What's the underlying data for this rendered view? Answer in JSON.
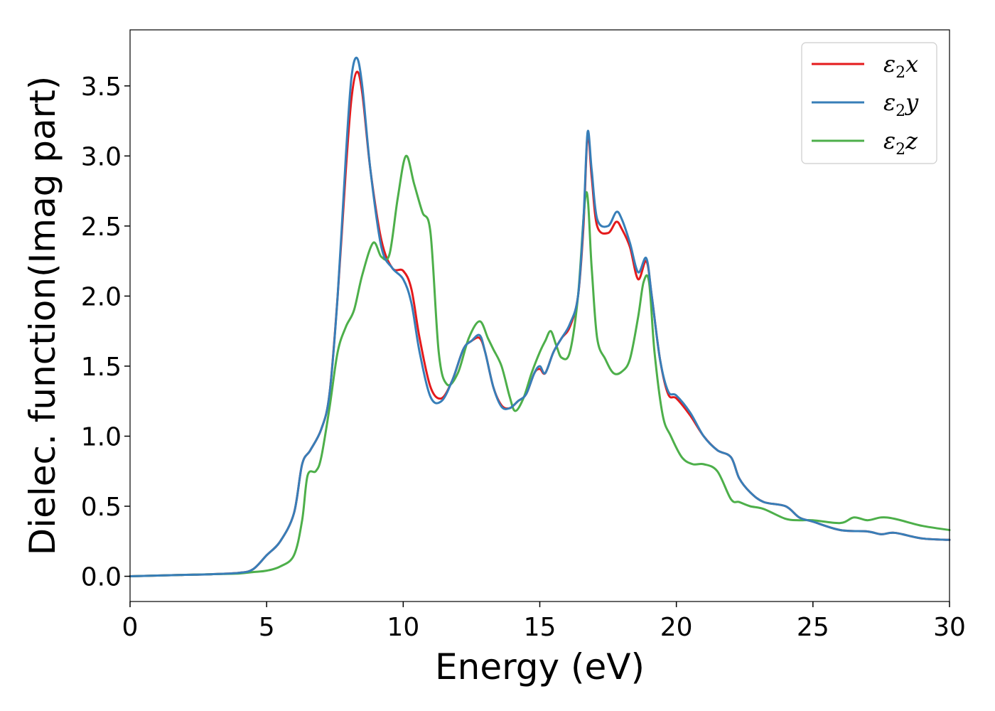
{
  "chart_data": {
    "type": "line",
    "xlabel": "Energy (eV)",
    "ylabel": "Dielec. function(Imag part)",
    "xlim": [
      0,
      30
    ],
    "ylim": [
      -0.18,
      3.9
    ],
    "xticks": [
      0,
      5,
      10,
      15,
      20,
      25,
      30
    ],
    "yticks": [
      0.0,
      0.5,
      1.0,
      1.5,
      2.0,
      2.5,
      3.0,
      3.5
    ],
    "xtick_labels": [
      "0",
      "5",
      "10",
      "15",
      "20",
      "25",
      "30"
    ],
    "ytick_labels": [
      "0.0",
      "0.5",
      "1.0",
      "1.5",
      "2.0",
      "2.5",
      "3.0",
      "3.5"
    ],
    "grid": false,
    "legend_position": "top-right",
    "series": [
      {
        "name": "ε2x",
        "legend_base": "ε",
        "legend_sub": "2",
        "legend_suffix": "x",
        "color": "#e41a1c",
        "x": [
          0,
          1,
          2,
          3,
          4,
          4.5,
          5,
          5.5,
          6,
          6.3,
          6.6,
          7,
          7.3,
          7.6,
          7.9,
          8.1,
          8.3,
          8.5,
          8.8,
          9.2,
          9.6,
          10,
          10.3,
          10.6,
          11,
          11.4,
          11.8,
          12.2,
          12.5,
          12.8,
          13,
          13.3,
          13.6,
          13.9,
          14.2,
          14.5,
          14.8,
          15,
          15.2,
          15.5,
          15.8,
          16.1,
          16.4,
          16.6,
          16.75,
          16.9,
          17.1,
          17.5,
          17.8,
          18,
          18.3,
          18.6,
          18.9,
          19.1,
          19.4,
          19.7,
          20,
          20.5,
          21,
          21.5,
          22,
          22.3,
          22.7,
          23.2,
          24,
          24.5,
          25,
          26,
          27,
          27.5,
          28,
          29,
          30
        ],
        "y": [
          0.0,
          0.005,
          0.01,
          0.015,
          0.025,
          0.05,
          0.15,
          0.25,
          0.45,
          0.8,
          0.9,
          1.05,
          1.3,
          2.0,
          2.9,
          3.4,
          3.6,
          3.45,
          2.9,
          2.4,
          2.2,
          2.18,
          2.05,
          1.7,
          1.35,
          1.27,
          1.4,
          1.62,
          1.68,
          1.7,
          1.6,
          1.35,
          1.22,
          1.2,
          1.25,
          1.3,
          1.45,
          1.48,
          1.45,
          1.6,
          1.7,
          1.78,
          2.0,
          2.5,
          3.15,
          2.85,
          2.5,
          2.45,
          2.53,
          2.48,
          2.35,
          2.12,
          2.25,
          2.0,
          1.55,
          1.3,
          1.27,
          1.15,
          1.0,
          0.9,
          0.85,
          0.7,
          0.6,
          0.53,
          0.5,
          0.42,
          0.39,
          0.33,
          0.32,
          0.3,
          0.31,
          0.27,
          0.26
        ]
      },
      {
        "name": "ε2y",
        "legend_base": "ε",
        "legend_sub": "2",
        "legend_suffix": "y",
        "color": "#377eb8",
        "x": [
          0,
          1,
          2,
          3,
          4,
          4.5,
          5,
          5.5,
          6,
          6.3,
          6.6,
          7,
          7.3,
          7.6,
          7.9,
          8.1,
          8.3,
          8.5,
          8.8,
          9.2,
          9.6,
          10,
          10.3,
          10.6,
          11,
          11.4,
          11.8,
          12.2,
          12.5,
          12.8,
          13,
          13.3,
          13.6,
          13.9,
          14.2,
          14.5,
          14.8,
          15,
          15.2,
          15.5,
          15.8,
          16.1,
          16.4,
          16.6,
          16.75,
          16.9,
          17.1,
          17.5,
          17.8,
          18,
          18.3,
          18.6,
          18.9,
          19.1,
          19.4,
          19.7,
          20,
          20.5,
          21,
          21.5,
          22,
          22.3,
          22.7,
          23.2,
          24,
          24.5,
          25,
          26,
          27,
          27.5,
          28,
          29,
          30
        ],
        "y": [
          0.0,
          0.005,
          0.01,
          0.015,
          0.025,
          0.05,
          0.15,
          0.25,
          0.45,
          0.8,
          0.9,
          1.05,
          1.3,
          2.0,
          3.0,
          3.55,
          3.7,
          3.5,
          2.9,
          2.35,
          2.2,
          2.12,
          1.95,
          1.6,
          1.28,
          1.25,
          1.4,
          1.62,
          1.68,
          1.72,
          1.6,
          1.35,
          1.21,
          1.2,
          1.25,
          1.3,
          1.45,
          1.5,
          1.45,
          1.6,
          1.7,
          1.8,
          2.0,
          2.55,
          3.17,
          2.9,
          2.55,
          2.5,
          2.6,
          2.55,
          2.38,
          2.17,
          2.27,
          2.0,
          1.55,
          1.32,
          1.29,
          1.17,
          1.0,
          0.9,
          0.85,
          0.7,
          0.6,
          0.53,
          0.5,
          0.42,
          0.39,
          0.33,
          0.32,
          0.3,
          0.31,
          0.27,
          0.26
        ]
      },
      {
        "name": "ε2z",
        "legend_base": "ε",
        "legend_sub": "2",
        "legend_suffix": "z",
        "color": "#4daf4a",
        "x": [
          0,
          1,
          2,
          3,
          4,
          4.5,
          5,
          5.5,
          6,
          6.3,
          6.5,
          6.8,
          7,
          7.3,
          7.6,
          7.9,
          8.2,
          8.5,
          8.9,
          9.2,
          9.5,
          9.8,
          10.1,
          10.4,
          10.7,
          11,
          11.3,
          11.6,
          12,
          12.4,
          12.8,
          13.1,
          13.3,
          13.6,
          13.9,
          14.1,
          14.4,
          14.7,
          15,
          15.2,
          15.4,
          15.6,
          15.8,
          16.1,
          16.4,
          16.7,
          16.9,
          17.1,
          17.4,
          17.7,
          18,
          18.3,
          18.6,
          18.8,
          19,
          19.2,
          19.5,
          19.8,
          20.2,
          20.6,
          21,
          21.5,
          22,
          22.3,
          22.7,
          23.2,
          24,
          24.5,
          25,
          26,
          26.5,
          27,
          27.5,
          28,
          29,
          30
        ],
        "y": [
          0.0,
          0.005,
          0.01,
          0.015,
          0.02,
          0.03,
          0.04,
          0.07,
          0.15,
          0.4,
          0.72,
          0.75,
          0.85,
          1.2,
          1.6,
          1.78,
          1.9,
          2.15,
          2.38,
          2.28,
          2.3,
          2.7,
          3.0,
          2.8,
          2.6,
          2.45,
          1.6,
          1.37,
          1.45,
          1.7,
          1.82,
          1.7,
          1.62,
          1.5,
          1.28,
          1.18,
          1.27,
          1.45,
          1.6,
          1.68,
          1.75,
          1.65,
          1.56,
          1.6,
          2.0,
          2.74,
          2.2,
          1.7,
          1.55,
          1.45,
          1.46,
          1.55,
          1.85,
          2.1,
          2.1,
          1.6,
          1.15,
          1.0,
          0.85,
          0.8,
          0.8,
          0.75,
          0.55,
          0.53,
          0.5,
          0.48,
          0.41,
          0.4,
          0.4,
          0.38,
          0.42,
          0.4,
          0.42,
          0.41,
          0.36,
          0.33
        ]
      }
    ]
  }
}
